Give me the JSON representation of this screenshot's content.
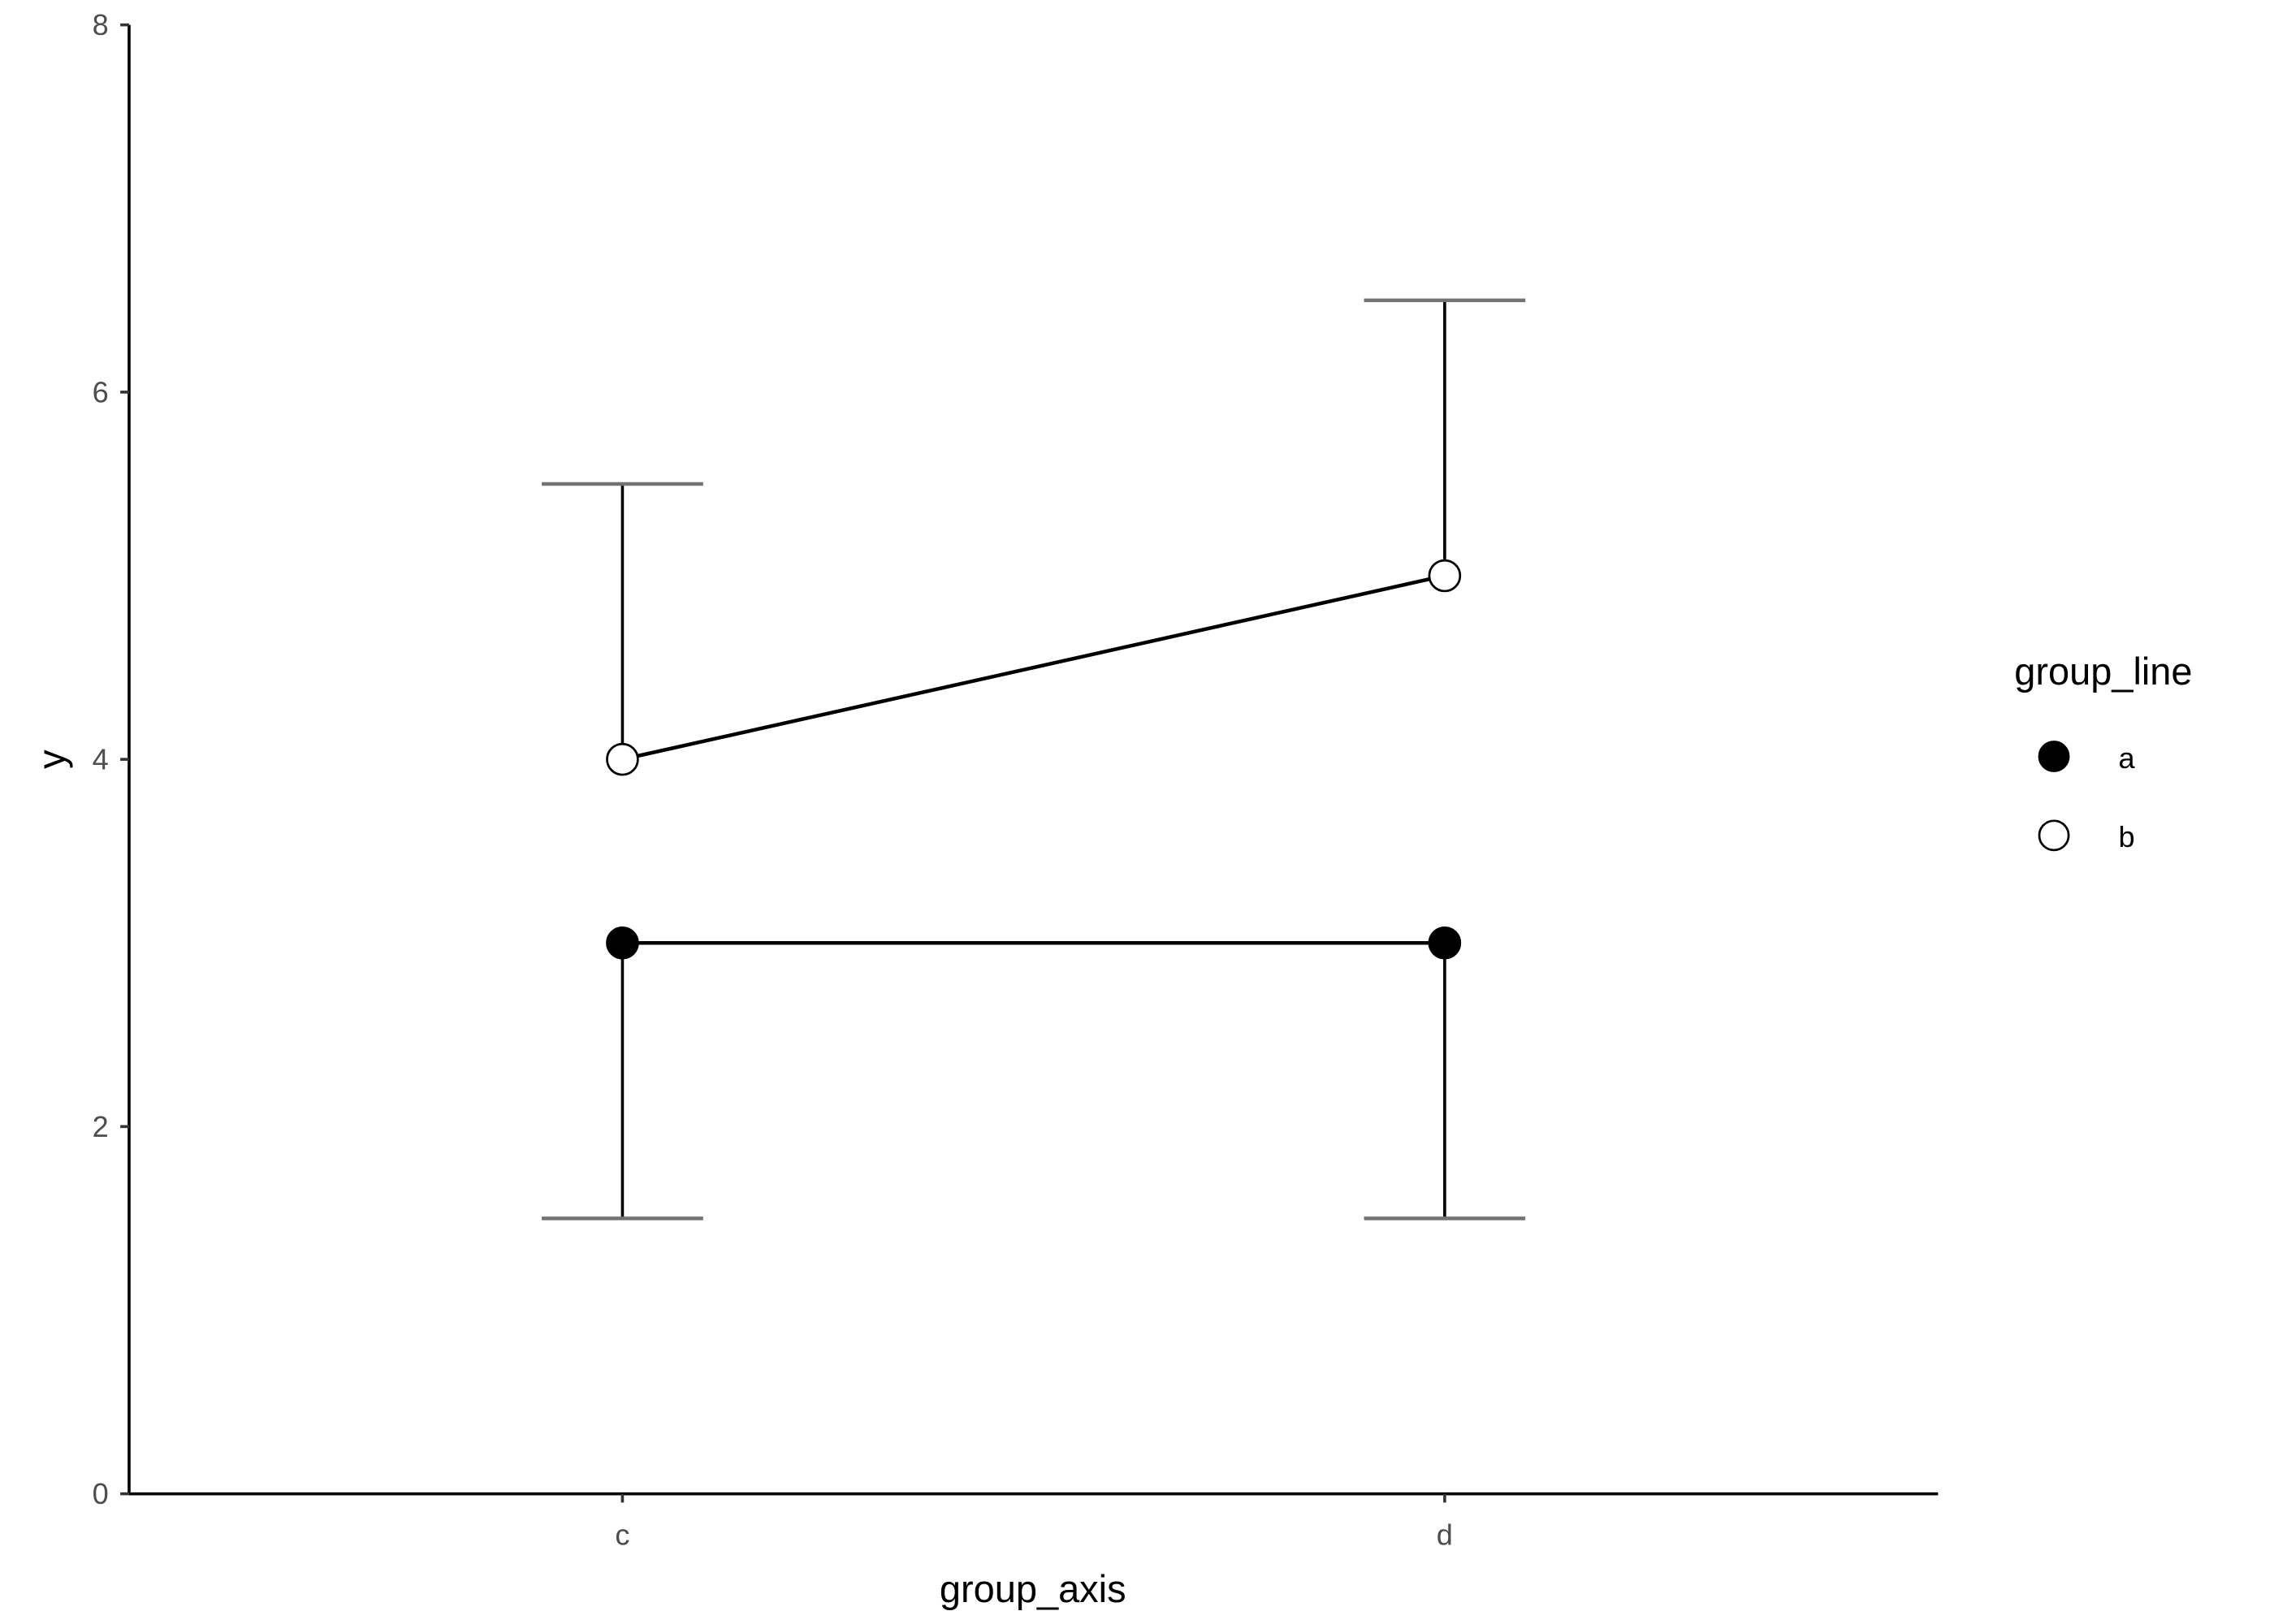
{
  "chart_data": {
    "type": "line",
    "xlabel": "group_axis",
    "ylabel": "y",
    "categories": [
      "c",
      "d"
    ],
    "ylim": [
      0,
      8
    ],
    "yticks": [
      "0",
      "2",
      "4",
      "6",
      "8"
    ],
    "grid": false,
    "legend": {
      "title": "group_line",
      "placement": "right",
      "entries": [
        "a",
        "b"
      ]
    },
    "series": [
      {
        "name": "a",
        "values": [
          3,
          3
        ],
        "error_lower": [
          1.5,
          1.5
        ],
        "fill": "#000000"
      },
      {
        "name": "b",
        "values": [
          4,
          5
        ],
        "error_upper": [
          5.5,
          6.5
        ],
        "fill": "#ffffff"
      }
    ],
    "colors": {
      "line": "#000000",
      "cap": "#737373",
      "tick_text": "#4d4d4d"
    }
  }
}
